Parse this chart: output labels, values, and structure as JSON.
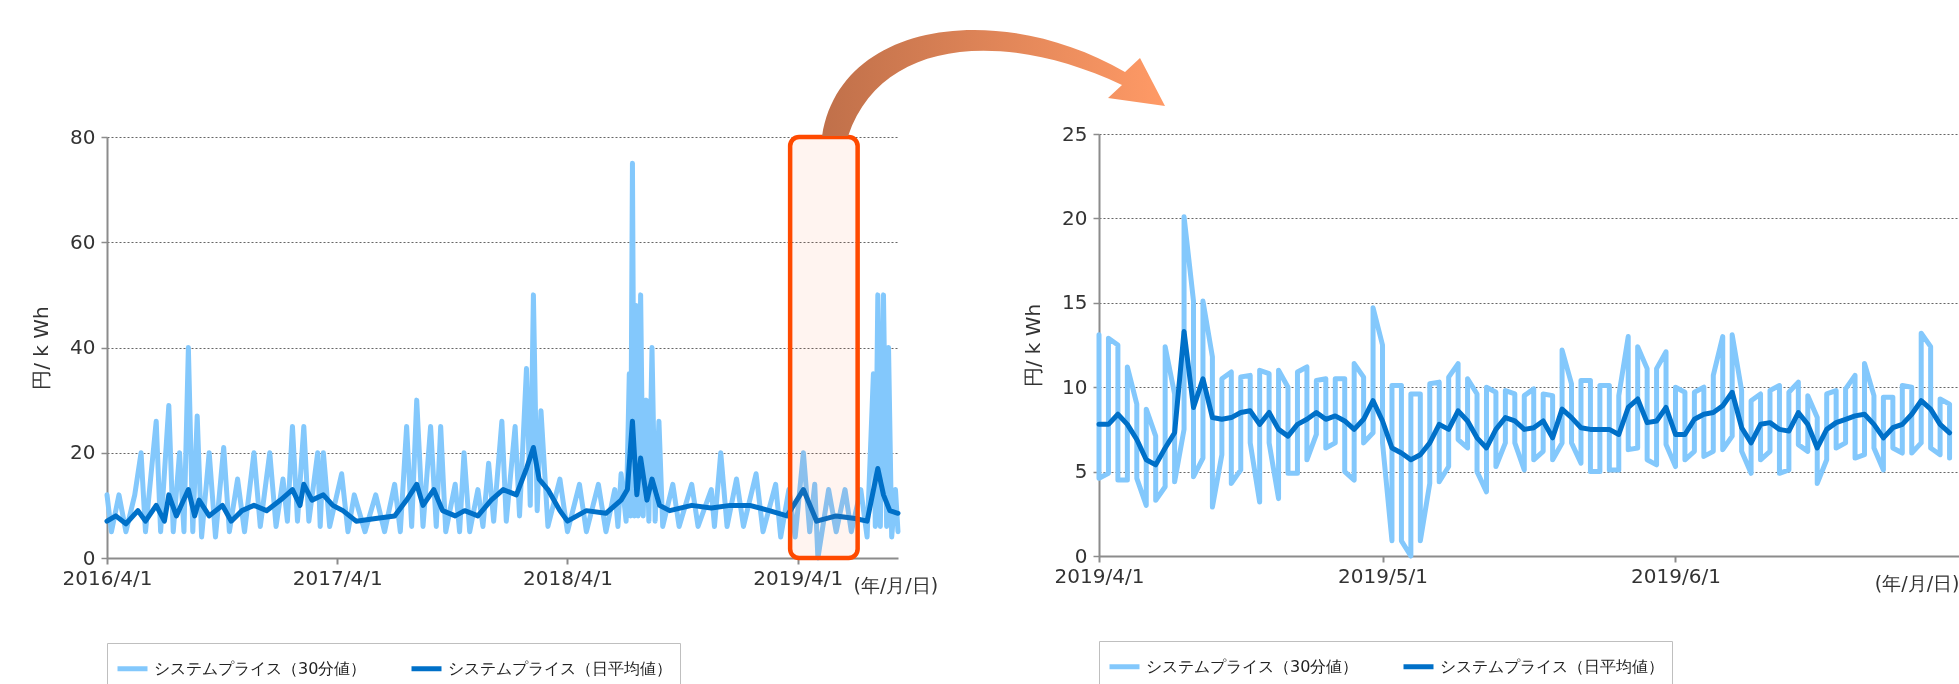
{
  "chart_data": [
    {
      "type": "line",
      "ylabel": "円/ k Wh",
      "xlabel": "(年/月/日)",
      "xlim": [
        "2016-04-01",
        "2019-09-07"
      ],
      "xticks": [
        {
          "value": "2016-04-01",
          "label": "2016/4/1"
        },
        {
          "value": "2017-04-01",
          "label": "2017/4/1"
        },
        {
          "value": "2018-04-01",
          "label": "2018/4/1"
        },
        {
          "value": "2019-04-01",
          "label": "2019/4/1"
        }
      ],
      "ylim": [
        0,
        80
      ],
      "yticks": [
        0,
        20,
        40,
        60,
        80
      ],
      "grid": "y",
      "legend": "bottom",
      "bands": [
        {
          "axis": "x",
          "from": "2019-03-20",
          "to": "2019-07-05",
          "color": "#ff4a00"
        }
      ],
      "x": [
        "2016-04-01",
        "2016-04-15",
        "2016-05-01",
        "2016-05-20",
        "2016-06-01",
        "2016-06-18",
        "2016-07-01",
        "2016-07-08",
        "2016-07-20",
        "2016-08-08",
        "2016-08-18",
        "2016-08-25",
        "2016-09-10",
        "2016-10-01",
        "2016-10-15",
        "2016-11-01",
        "2016-11-20",
        "2016-12-10",
        "2017-01-01",
        "2017-01-20",
        "2017-02-01",
        "2017-02-07",
        "2017-02-20",
        "2017-03-10",
        "2017-03-25",
        "2017-04-10",
        "2017-05-01",
        "2017-06-01",
        "2017-07-01",
        "2017-07-20",
        "2017-08-05",
        "2017-08-15",
        "2017-09-01",
        "2017-09-15",
        "2017-10-05",
        "2017-10-20",
        "2017-11-10",
        "2017-12-01",
        "2017-12-20",
        "2018-01-10",
        "2018-01-26",
        "2018-02-06",
        "2018-02-15",
        "2018-03-01",
        "2018-03-20",
        "2018-04-01",
        "2018-05-01",
        "2018-06-01",
        "2018-06-25",
        "2018-07-05",
        "2018-07-13",
        "2018-07-20",
        "2018-07-26",
        "2018-08-05",
        "2018-08-13",
        "2018-08-25",
        "2018-09-10",
        "2018-10-15",
        "2018-11-15",
        "2018-12-15",
        "2019-01-15",
        "2019-02-15",
        "2019-03-15",
        "2019-04-10",
        "2019-05-01",
        "2019-06-01",
        "2019-07-01",
        "2019-07-20",
        "2019-08-06",
        "2019-08-15",
        "2019-08-25",
        "2019-09-07"
      ],
      "series": [
        {
          "name": "システムプライス（30分値）",
          "color": "#83c8fc",
          "x": [
            "2016-04-01",
            "2016-04-08",
            "2016-04-20",
            "2016-05-01",
            "2016-05-15",
            "2016-05-25",
            "2016-06-01",
            "2016-06-18",
            "2016-06-25",
            "2016-07-08",
            "2016-07-15",
            "2016-07-25",
            "2016-08-01",
            "2016-08-08",
            "2016-08-15",
            "2016-08-22",
            "2016-08-29",
            "2016-09-10",
            "2016-09-20",
            "2016-10-03",
            "2016-10-12",
            "2016-10-25",
            "2016-11-05",
            "2016-11-20",
            "2016-11-30",
            "2016-12-15",
            "2016-12-25",
            "2017-01-05",
            "2017-01-12",
            "2017-01-20",
            "2017-01-28",
            "2017-02-07",
            "2017-02-15",
            "2017-03-01",
            "2017-03-05",
            "2017-03-10",
            "2017-03-20",
            "2017-04-08",
            "2017-04-18",
            "2017-04-28",
            "2017-05-15",
            "2017-06-01",
            "2017-06-15",
            "2017-07-01",
            "2017-07-10",
            "2017-07-20",
            "2017-07-28",
            "2017-08-05",
            "2017-08-15",
            "2017-08-27",
            "2017-09-05",
            "2017-09-12",
            "2017-09-20",
            "2017-10-05",
            "2017-10-12",
            "2017-10-19",
            "2017-10-28",
            "2017-11-10",
            "2017-11-18",
            "2017-11-27",
            "2017-12-05",
            "2017-12-18",
            "2017-12-25",
            "2018-01-08",
            "2018-01-15",
            "2018-01-26",
            "2018-02-01",
            "2018-02-06",
            "2018-02-12",
            "2018-02-18",
            "2018-03-01",
            "2018-03-20",
            "2018-04-01",
            "2018-04-20",
            "2018-05-01",
            "2018-05-20",
            "2018-06-01",
            "2018-06-15",
            "2018-06-20",
            "2018-06-25",
            "2018-07-03",
            "2018-07-08",
            "2018-07-10",
            "2018-07-13",
            "2018-07-16",
            "2018-07-19",
            "2018-07-22",
            "2018-07-26",
            "2018-07-30",
            "2018-08-04",
            "2018-08-08",
            "2018-08-13",
            "2018-08-18",
            "2018-08-24",
            "2018-08-30",
            "2018-09-15",
            "2018-09-25",
            "2018-10-15",
            "2018-10-25",
            "2018-11-15",
            "2018-11-20",
            "2018-11-30",
            "2018-12-10",
            "2018-12-25",
            "2019-01-05",
            "2019-01-25",
            "2019-02-05",
            "2019-02-25",
            "2019-03-05",
            "2019-03-18",
            "2019-03-28",
            "2019-04-10",
            "2019-04-20",
            "2019-04-28",
            "2019-05-03",
            "2019-05-20",
            "2019-06-01",
            "2019-06-15",
            "2019-06-25",
            "2019-07-10",
            "2019-07-20",
            "2019-07-30",
            "2019-08-02",
            "2019-08-06",
            "2019-08-10",
            "2019-08-15",
            "2019-08-20",
            "2019-08-23",
            "2019-08-28",
            "2019-09-03",
            "2019-09-07"
          ],
          "values": [
            12,
            5,
            12,
            5,
            12,
            20,
            5,
            26,
            5,
            29,
            5,
            20,
            5,
            40,
            5,
            27,
            4,
            20,
            4,
            21,
            5,
            15,
            5,
            20,
            6,
            20,
            6,
            15,
            7,
            25,
            7,
            25,
            7,
            20,
            6,
            20,
            6,
            16,
            5,
            12,
            5,
            12,
            5,
            14,
            5,
            25,
            6,
            30,
            6,
            25,
            6,
            25,
            5,
            14,
            5,
            20,
            5,
            13,
            6,
            18,
            7,
            26,
            7,
            25,
            8,
            36,
            10,
            50,
            9,
            28,
            6,
            15,
            5,
            14,
            5,
            14,
            5,
            13,
            6,
            16,
            7,
            35,
            8,
            75,
            8,
            48,
            8,
            50,
            8,
            30,
            7,
            40,
            7,
            26,
            6,
            14,
            6,
            14,
            6,
            13,
            6,
            20,
            6,
            15,
            6,
            16,
            5,
            14,
            4,
            13,
            4,
            20,
            5,
            14,
            0,
            13,
            5,
            13,
            5,
            13,
            4,
            35,
            6,
            50,
            6,
            50,
            6,
            40,
            4,
            13,
            5
          ]
        },
        {
          "name": "システムプライス（日平均値）",
          "color": "#0070c8",
          "values": [
            7,
            8,
            6.5,
            9,
            7,
            10,
            7,
            12,
            8,
            13,
            8,
            11,
            8,
            10,
            7,
            9,
            10,
            9,
            11,
            13,
            10,
            14,
            11,
            12,
            10,
            9,
            7,
            7.5,
            8,
            11,
            14,
            10,
            13,
            9,
            8,
            9,
            8,
            11,
            13,
            12,
            17,
            21,
            15,
            13,
            9,
            7,
            9,
            8.5,
            11,
            13,
            26,
            12,
            19,
            11,
            15,
            10,
            9,
            10,
            9.5,
            10,
            10,
            9,
            8,
            13,
            7,
            8,
            7.5,
            7,
            17,
            12,
            9,
            8.5
          ]
        }
      ]
    },
    {
      "type": "line",
      "ylabel": "円/ k Wh",
      "xlabel": "(年/月/日)",
      "xlim": [
        "2019-04-01",
        "2019-07-01"
      ],
      "xticks": [
        {
          "value": "2019-04-01",
          "label": "2019/4/1"
        },
        {
          "value": "2019-05-01",
          "label": "2019/5/1"
        },
        {
          "value": "2019-06-01",
          "label": "2019/6/1"
        }
      ],
      "ylim": [
        0,
        25
      ],
      "yticks": [
        0,
        5,
        10,
        15,
        20,
        25
      ],
      "grid": "y",
      "legend": "bottom",
      "x": [
        "2019-04-01",
        "2019-04-02",
        "2019-04-03",
        "2019-04-04",
        "2019-04-05",
        "2019-04-06",
        "2019-04-07",
        "2019-04-08",
        "2019-04-09",
        "2019-04-10",
        "2019-04-11",
        "2019-04-12",
        "2019-04-13",
        "2019-04-14",
        "2019-04-15",
        "2019-04-16",
        "2019-04-17",
        "2019-04-18",
        "2019-04-19",
        "2019-04-20",
        "2019-04-21",
        "2019-04-22",
        "2019-04-23",
        "2019-04-24",
        "2019-04-25",
        "2019-04-26",
        "2019-04-27",
        "2019-04-28",
        "2019-04-29",
        "2019-04-30",
        "2019-05-01",
        "2019-05-02",
        "2019-05-03",
        "2019-05-04",
        "2019-05-05",
        "2019-05-06",
        "2019-05-07",
        "2019-05-08",
        "2019-05-09",
        "2019-05-10",
        "2019-05-11",
        "2019-05-12",
        "2019-05-13",
        "2019-05-14",
        "2019-05-15",
        "2019-05-16",
        "2019-05-17",
        "2019-05-18",
        "2019-05-19",
        "2019-05-20",
        "2019-05-21",
        "2019-05-22",
        "2019-05-23",
        "2019-05-24",
        "2019-05-25",
        "2019-05-26",
        "2019-05-27",
        "2019-05-28",
        "2019-05-29",
        "2019-05-30",
        "2019-05-31",
        "2019-06-01",
        "2019-06-02",
        "2019-06-03",
        "2019-06-04",
        "2019-06-05",
        "2019-06-06",
        "2019-06-07",
        "2019-06-08",
        "2019-06-09",
        "2019-06-10",
        "2019-06-11",
        "2019-06-12",
        "2019-06-13",
        "2019-06-14",
        "2019-06-15",
        "2019-06-16",
        "2019-06-17",
        "2019-06-18",
        "2019-06-19",
        "2019-06-20",
        "2019-06-21",
        "2019-06-22",
        "2019-06-23",
        "2019-06-24",
        "2019-06-25",
        "2019-06-26",
        "2019-06-27",
        "2019-06-28",
        "2019-06-29",
        "2019-06-30"
      ],
      "series": [
        {
          "name": "システムプライス（30分値）",
          "color": "#83c8fc",
          "x": [
            "2019-04-01",
            "2019-04-01",
            "2019-04-02",
            "2019-04-02",
            "2019-04-03",
            "2019-04-03",
            "2019-04-04",
            "2019-04-04",
            "2019-04-05",
            "2019-04-05",
            "2019-04-06",
            "2019-04-06",
            "2019-04-07",
            "2019-04-07",
            "2019-04-08",
            "2019-04-08",
            "2019-04-09",
            "2019-04-09",
            "2019-04-10",
            "2019-04-10",
            "2019-04-11",
            "2019-04-11",
            "2019-04-12",
            "2019-04-12",
            "2019-04-13",
            "2019-04-13",
            "2019-04-14",
            "2019-04-14",
            "2019-04-15",
            "2019-04-15",
            "2019-04-16",
            "2019-04-16",
            "2019-04-17",
            "2019-04-17",
            "2019-04-18",
            "2019-04-18",
            "2019-04-19",
            "2019-04-19",
            "2019-04-20",
            "2019-04-20",
            "2019-04-21",
            "2019-04-21",
            "2019-04-22",
            "2019-04-22",
            "2019-04-23",
            "2019-04-23",
            "2019-04-24",
            "2019-04-24",
            "2019-04-25",
            "2019-04-25",
            "2019-04-26",
            "2019-04-26",
            "2019-04-27",
            "2019-04-27",
            "2019-04-28",
            "2019-04-28",
            "2019-04-29",
            "2019-04-29",
            "2019-04-30",
            "2019-04-30",
            "2019-05-01",
            "2019-05-01",
            "2019-05-02",
            "2019-05-02",
            "2019-05-03",
            "2019-05-03",
            "2019-05-04",
            "2019-05-04",
            "2019-05-05",
            "2019-05-05",
            "2019-05-06",
            "2019-05-06",
            "2019-05-07",
            "2019-05-07",
            "2019-05-08",
            "2019-05-08",
            "2019-05-09",
            "2019-05-09",
            "2019-05-10",
            "2019-05-10",
            "2019-05-11",
            "2019-05-11",
            "2019-05-12",
            "2019-05-12",
            "2019-05-13",
            "2019-05-13",
            "2019-05-14",
            "2019-05-14",
            "2019-05-15",
            "2019-05-15",
            "2019-05-16",
            "2019-05-16",
            "2019-05-17",
            "2019-05-17",
            "2019-05-18",
            "2019-05-18",
            "2019-05-19",
            "2019-05-19",
            "2019-05-20",
            "2019-05-20",
            "2019-05-21",
            "2019-05-21",
            "2019-05-22",
            "2019-05-22",
            "2019-05-23",
            "2019-05-23",
            "2019-05-24",
            "2019-05-24",
            "2019-05-25",
            "2019-05-25",
            "2019-05-26",
            "2019-05-26",
            "2019-05-27",
            "2019-05-27",
            "2019-05-28",
            "2019-05-28",
            "2019-05-29",
            "2019-05-29",
            "2019-05-30",
            "2019-05-30",
            "2019-05-31",
            "2019-05-31",
            "2019-06-01",
            "2019-06-01",
            "2019-06-02",
            "2019-06-02",
            "2019-06-03",
            "2019-06-03",
            "2019-06-04",
            "2019-06-04",
            "2019-06-05",
            "2019-06-05",
            "2019-06-06",
            "2019-06-06",
            "2019-06-07",
            "2019-06-07",
            "2019-06-08",
            "2019-06-08",
            "2019-06-09",
            "2019-06-09",
            "2019-06-10",
            "2019-06-10",
            "2019-06-11",
            "2019-06-11",
            "2019-06-12",
            "2019-06-12",
            "2019-06-13",
            "2019-06-13",
            "2019-06-14",
            "2019-06-14",
            "2019-06-15",
            "2019-06-15",
            "2019-06-16",
            "2019-06-16",
            "2019-06-17",
            "2019-06-17",
            "2019-06-18",
            "2019-06-18",
            "2019-06-19",
            "2019-06-19",
            "2019-06-20",
            "2019-06-20",
            "2019-06-21",
            "2019-06-21",
            "2019-06-22",
            "2019-06-22",
            "2019-06-23",
            "2019-06-23",
            "2019-06-24",
            "2019-06-24",
            "2019-06-25",
            "2019-06-25",
            "2019-06-26",
            "2019-06-26",
            "2019-06-27",
            "2019-06-27",
            "2019-06-28",
            "2019-06-28",
            "2019-06-29",
            "2019-06-29",
            "2019-06-30",
            "2019-06-30"
          ],
          "values": [
            13.1,
            4.6,
            4.9,
            12.9,
            12.5,
            4.5,
            4.5,
            11.2,
            9.0,
            4.6,
            3.0,
            8.7,
            7.1,
            3.3,
            4.1,
            12.4,
            9.6,
            4.4,
            7.5,
            20.1,
            15.1,
            4.7,
            5.8,
            15.1,
            11.8,
            2.9,
            6.0,
            10.5,
            10.9,
            4.3,
            5.1,
            10.6,
            10.7,
            6.7,
            3.2,
            11.0,
            10.8,
            6.7,
            3.4,
            11.0,
            10.0,
            4.9,
            4.9,
            10.9,
            11.2,
            5.7,
            7.2,
            10.4,
            10.5,
            6.4,
            6.7,
            10.5,
            10.5,
            5.0,
            4.5,
            11.4,
            10.6,
            6.7,
            7.3,
            14.7,
            12.5,
            6.7,
            0.9,
            10.1,
            10.1,
            0.9,
            0,
            9.6,
            9.6,
            0.9,
            4.3,
            10.2,
            10.3,
            4.4,
            5.3,
            10.6,
            11.4,
            6.9,
            6.4,
            10.5,
            9.6,
            5.0,
            3.8,
            10.0,
            9.7,
            5.3,
            6.7,
            9.8,
            9.6,
            6.7,
            5.1,
            9.5,
            9.9,
            5.7,
            6.2,
            9.6,
            9.5,
            5.7,
            6.7,
            12.2,
            10.2,
            6.7,
            5.5,
            10.4,
            10.4,
            5.0,
            5.0,
            10.1,
            10.1,
            5.1,
            5.1,
            9.5,
            13.0,
            6.3,
            6.4,
            12.4,
            11.1,
            5.7,
            5.4,
            11.1,
            12.1,
            6.6,
            5.3,
            10.0,
            9.7,
            5.7,
            6.2,
            9.7,
            10.0,
            5.9,
            6.2,
            10.7,
            13.0,
            6.3,
            7.1,
            13.1,
            9.8,
            6.2,
            4.9,
            9.2,
            9.6,
            5.7,
            6.2,
            9.8,
            10.1,
            4.9,
            5.1,
            9.7,
            10.3,
            6.6,
            6.2,
            9.5,
            8.2,
            4.3,
            5.7,
            9.6,
            9.8,
            6.4,
            6.7,
            9.9,
            10.7,
            5.8,
            6.0,
            11.4,
            9.5,
            6.4,
            5.1,
            9.4,
            9.4,
            6.4,
            6.1,
            10.1,
            10.0,
            6.1,
            6.7,
            13.2,
            12.4,
            6.4,
            6.0,
            9.3,
            9.0,
            5.8
          ]
        },
        {
          "name": "システムプライス（日平均値）",
          "color": "#0070c8",
          "values": [
            7.8,
            7.8,
            8.4,
            7.8,
            6.9,
            5.7,
            5.4,
            6.4,
            7.3,
            13.3,
            8.8,
            10.5,
            8.2,
            8.1,
            8.2,
            8.5,
            8.6,
            7.8,
            8.5,
            7.5,
            7.1,
            7.8,
            8.1,
            8.5,
            8.1,
            8.3,
            8.0,
            7.5,
            8.1,
            9.2,
            8.0,
            6.4,
            6.1,
            5.7,
            6.0,
            6.7,
            7.8,
            7.5,
            8.6,
            8.0,
            7.0,
            6.4,
            7.5,
            8.2,
            8.0,
            7.5,
            7.6,
            8.0,
            7.0,
            8.7,
            8.2,
            7.6,
            7.5,
            7.5,
            7.5,
            7.2,
            8.8,
            9.3,
            7.9,
            8.0,
            8.8,
            7.2,
            7.2,
            8.1,
            8.4,
            8.5,
            8.9,
            9.7,
            7.6,
            6.7,
            7.8,
            7.9,
            7.5,
            7.4,
            8.5,
            7.8,
            6.4,
            7.5,
            7.9,
            8.1,
            8.3,
            8.4,
            7.8,
            7.0,
            7.6,
            7.8,
            8.4,
            9.2,
            8.7,
            7.8,
            7.3
          ]
        }
      ]
    }
  ]
}
